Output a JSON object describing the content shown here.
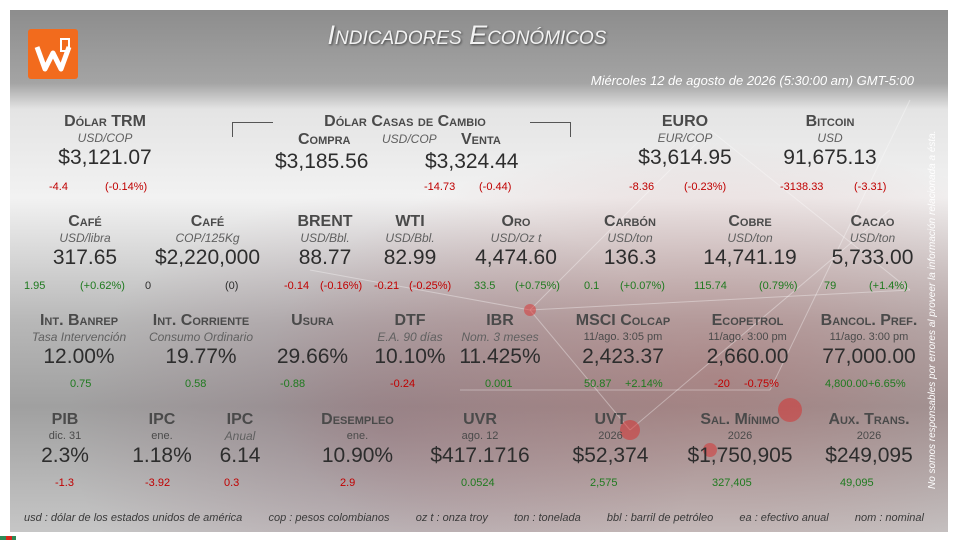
{
  "header": {
    "title": "Indicadores Económicos",
    "date": "Miércoles 12 de agosto de 2026 (5:30:00 am) GMT-5:00"
  },
  "colors": {
    "logo": "#f26b1d",
    "negative": "#c00000",
    "positive": "#1f7a1f"
  },
  "disclaimer": "No somos responsables por errores al proveer la información relacionada a ésta.",
  "indicators": [
    {
      "name": "Dólar TRM",
      "unit": "USD/COP",
      "value": "$3,121.07",
      "ch1": "-4.4",
      "ch2": "(-0.14%)",
      "dir": "neg"
    },
    {
      "name": "Dólar Casas de Cambio",
      "buy_label": "Compra",
      "unit": "USD/COP",
      "sell_label": "Venta",
      "buy": "$3,185.56",
      "sell": "$3,324.44",
      "ch1": "-14.73",
      "ch2": "(-0.44)",
      "dir": "neg"
    },
    {
      "name": "EURO",
      "unit": "EUR/COP",
      "value": "$3,614.95",
      "ch1": "-8.36",
      "ch2": "(-0.23%)",
      "dir": "neg"
    },
    {
      "name": "Bitcoin",
      "unit": "USD",
      "value": "91,675.13",
      "ch1": "-3138.33",
      "ch2": "(-3.31)",
      "dir": "neg"
    },
    {
      "name": "Café",
      "unit": "USD/libra",
      "value": "317.65",
      "ch1": "1.95",
      "ch2": "(+0.62%)",
      "dir": "pos"
    },
    {
      "name": "Café",
      "unit": "COP/125Kg",
      "value": "$2,220,000",
      "ch1": "0",
      "ch2": "(0)",
      "dir": "neu"
    },
    {
      "name": "BRENT",
      "unit": "USD/Bbl.",
      "value": "88.77",
      "ch1": "-0.14",
      "ch2": "(-0.16%)",
      "dir": "neg"
    },
    {
      "name": "WTI",
      "unit": "USD/Bbl.",
      "value": "82.99",
      "ch1": "-0.21",
      "ch2": "(-0.25%)",
      "dir": "neg"
    },
    {
      "name": "Oro",
      "unit": "USD/Oz t",
      "value": "4,474.60",
      "ch1": "33.5",
      "ch2": "(+0.75%)",
      "dir": "pos"
    },
    {
      "name": "Carbón",
      "unit": "USD/ton",
      "value": "136.3",
      "ch1": "0.1",
      "ch2": "(+0.07%)",
      "dir": "pos"
    },
    {
      "name": "Cobre",
      "unit": "USD/ton",
      "value": "14,741.19",
      "ch1": "115.74",
      "ch2": "(0.79%)",
      "dir": "pos"
    },
    {
      "name": "Cacao",
      "unit": "USD/ton",
      "value": "5,733.00",
      "ch1": "79",
      "ch2": "(+1.4%)",
      "dir": "pos"
    },
    {
      "name": "Int. Banrep",
      "unit": "Tasa Intervención",
      "value": "12.00%",
      "ch1": "0.75",
      "dir": "pos"
    },
    {
      "name": "Int. Corriente",
      "unit": "Consumo Ordinario",
      "value": "19.77%",
      "ch1": "0.58",
      "dir": "pos"
    },
    {
      "name": "Usura",
      "value": "29.66%",
      "ch1": "-0.88",
      "dir": "pos"
    },
    {
      "name": "DTF",
      "unit": "E.A. 90 días",
      "value": "10.10%",
      "ch1": "-0.24",
      "dir": "neg"
    },
    {
      "name": "IBR",
      "unit": "Nom. 3 meses",
      "value": "11.425%",
      "ch1": "0.001",
      "dir": "pos"
    },
    {
      "name": "MSCI Colcap",
      "date": "11/ago. 3:05 pm",
      "value": "2,423.37",
      "ch1": "50.87",
      "ch2": "+2.14%",
      "dir": "pos"
    },
    {
      "name": "Ecopetrol",
      "date": "11/ago. 3:00 pm",
      "value": "2,660.00",
      "ch1": "-20",
      "ch2": "-0.75%",
      "dir": "neg"
    },
    {
      "name": "Bancol. Pref.",
      "date": "11/ago. 3:00 pm",
      "value": "77,000.00",
      "ch1": "4,800.00",
      "ch2": "+6.65%",
      "dir": "pos"
    },
    {
      "name": "PIB",
      "date": "dic. 31",
      "value": "2.3%",
      "ch1": "-1.3",
      "dir": "neg"
    },
    {
      "name": "IPC",
      "date": "ene.",
      "value": "1.18%",
      "ch1": "-3.92",
      "dir": "neg"
    },
    {
      "name": "IPC",
      "unit": "Anual",
      "value": "6.14",
      "ch1": "0.3",
      "dir": "neg"
    },
    {
      "name": "Desempleo",
      "date": "ene.",
      "value": "10.90%",
      "ch1": "2.9",
      "dir": "neg"
    },
    {
      "name": "UVR",
      "date": "ago. 12",
      "value": "$417.1716",
      "ch1": "0.0524",
      "dir": "pos"
    },
    {
      "name": "UVT",
      "date": "2026",
      "value": "$52,374",
      "ch1": "2,575",
      "dir": "pos"
    },
    {
      "name": "Sal. Mínimo",
      "date": "2026",
      "value": "$1,750,905",
      "ch1": "327,405",
      "dir": "pos"
    },
    {
      "name": "Aux. Trans.",
      "date": "2026",
      "value": "$249,095",
      "ch1": "49,095",
      "dir": "pos"
    }
  ],
  "legend": [
    "usd : dólar de los estados unidos de américa",
    "cop : pesos colombianos",
    "oz t : onza troy",
    "ton : tonelada",
    "bbl : barril de petróleo",
    "ea : efectivo anual",
    "nom : nominal"
  ]
}
